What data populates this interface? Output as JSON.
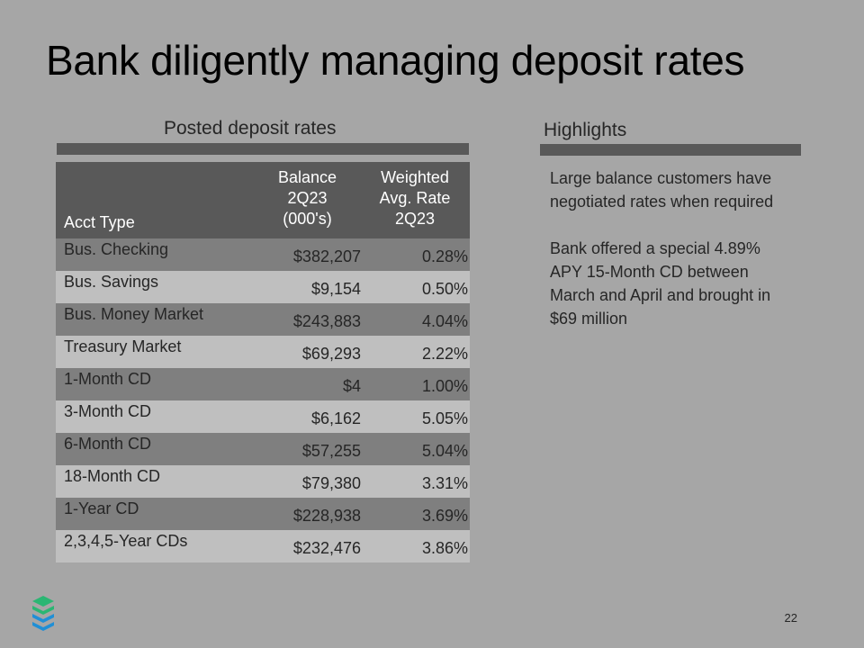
{
  "slide": {
    "title": "Bank diligently managing deposit rates",
    "page_number": "22"
  },
  "left_section": {
    "title": "Posted deposit rates",
    "table": {
      "headers": {
        "type": "Acct Type",
        "balance": [
          "Balance",
          "2Q23",
          "(000's)"
        ],
        "rate": [
          "Weighted",
          "Avg. Rate",
          "2Q23"
        ]
      },
      "rows": [
        {
          "type": "Bus. Checking",
          "balance": "$382,207",
          "rate": "0.28%"
        },
        {
          "type": "Bus. Savings",
          "balance": "$9,154",
          "rate": "0.50%"
        },
        {
          "type": "Bus. Money Market",
          "balance": "$243,883",
          "rate": "4.04%"
        },
        {
          "type": "Treasury Market",
          "balance": "$69,293",
          "rate": "2.22%"
        },
        {
          "type": "1-Month CD",
          "balance": "$4",
          "rate": "1.00%"
        },
        {
          "type": "3-Month CD",
          "balance": "$6,162",
          "rate": "5.05%"
        },
        {
          "type": "6-Month CD",
          "balance": "$57,255",
          "rate": "5.04%"
        },
        {
          "type": "18-Month CD",
          "balance": "$79,380",
          "rate": "3.31%"
        },
        {
          "type": "1-Year CD",
          "balance": "$228,938",
          "rate": "3.69%"
        },
        {
          "type": "2,3,4,5-Year CDs",
          "balance": "$232,476",
          "rate": "3.86%"
        }
      ]
    }
  },
  "right_section": {
    "title": "Highlights",
    "paragraphs": [
      "Large balance customers have negotiated rates when required",
      "Bank offered a special 4.89% APY 15-Month CD between March and April and brought in $69 million"
    ]
  },
  "colors": {
    "background": "#a6a6a6",
    "header": "#595959",
    "row_dark": "#7f7f7f",
    "row_light": "#bfbfbf",
    "logo_green": "#2bb673",
    "logo_blue": "#1f8fd6"
  },
  "icons": {
    "logo": "layered-stack-logo-icon"
  }
}
